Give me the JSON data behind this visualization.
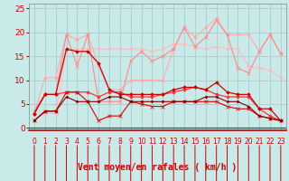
{
  "xlabel": "Vent moyen/en rafales ( km/h )",
  "background_color": "#caeaea",
  "grid_color": "#aacccc",
  "x": [
    0,
    1,
    2,
    3,
    4,
    5,
    6,
    7,
    8,
    9,
    10,
    11,
    12,
    13,
    14,
    15,
    16,
    17,
    18,
    19,
    20,
    21,
    22,
    23
  ],
  "ylim": [
    -0.5,
    26
  ],
  "yticks": [
    0,
    5,
    10,
    15,
    20,
    25
  ],
  "lines": [
    {
      "y": [
        3,
        10.5,
        10.5,
        19.5,
        18.5,
        19.5,
        13,
        8,
        8,
        10,
        10,
        10,
        10,
        16.5,
        21,
        19,
        21,
        23,
        19.5,
        19.5,
        19.5,
        16,
        19.5,
        15.5
      ],
      "color": "#ffaaaa",
      "lw": 0.8,
      "marker": "D",
      "ms": 1.8
    },
    {
      "y": [
        1.5,
        3,
        3,
        16.5,
        16.5,
        16.5,
        16.5,
        16.5,
        16.5,
        16.5,
        16.5,
        16,
        16.5,
        17.5,
        17.5,
        17,
        16.5,
        17,
        16.5,
        16.5,
        13,
        12.5,
        12,
        10.5
      ],
      "color": "#ffbbbb",
      "lw": 0.8,
      "marker": "D",
      "ms": 1.8
    },
    {
      "y": [
        3.5,
        7,
        7,
        19.5,
        13,
        19.5,
        5.5,
        5.5,
        5.5,
        14,
        16,
        14,
        15,
        16.5,
        21,
        17,
        19,
        22.5,
        19.5,
        12.5,
        11.5,
        16,
        19.5,
        15.5
      ],
      "color": "#ff8888",
      "lw": 0.8,
      "marker": "x",
      "ms": 2.5
    },
    {
      "y": [
        3,
        7,
        7,
        7.5,
        7.5,
        7.5,
        6.5,
        7.5,
        7.5,
        6.5,
        6.5,
        6.5,
        7,
        7.5,
        8,
        8.5,
        8,
        7,
        6.5,
        6.5,
        6.5,
        4,
        2.5,
        1.5
      ],
      "color": "#ff3333",
      "lw": 0.9,
      "marker": "D",
      "ms": 1.8
    },
    {
      "y": [
        3,
        7,
        7,
        16.5,
        16,
        16,
        13.5,
        8,
        7,
        7,
        7,
        7,
        7,
        8,
        8.5,
        8.5,
        8,
        9.5,
        7.5,
        7,
        7,
        4,
        4,
        1.5
      ],
      "color": "#cc0000",
      "lw": 0.9,
      "marker": "D",
      "ms": 1.8
    },
    {
      "y": [
        1.5,
        3.5,
        3.5,
        7.5,
        7.5,
        5.5,
        1.5,
        2.5,
        2.5,
        5.5,
        5,
        4.5,
        4.5,
        5.5,
        5.5,
        5.5,
        5.5,
        5.5,
        4.5,
        4,
        4,
        2.5,
        2,
        1.5
      ],
      "color": "#dd0000",
      "lw": 0.8,
      "marker": "x",
      "ms": 2.5
    },
    {
      "y": [
        1.5,
        3.5,
        3.5,
        6.5,
        5.5,
        5.5,
        5.5,
        6.5,
        6.5,
        5.5,
        5.5,
        5.5,
        5.5,
        5.5,
        5.5,
        5.5,
        6.5,
        6.5,
        5.5,
        5.5,
        4.5,
        2.5,
        2,
        1.5
      ],
      "color": "#880000",
      "lw": 0.8,
      "marker": "D",
      "ms": 1.5
    }
  ],
  "arrow_color": "#cc0000",
  "xtick_fontsize": 5.5,
  "ytick_fontsize": 6.5,
  "xlabel_fontsize": 7
}
